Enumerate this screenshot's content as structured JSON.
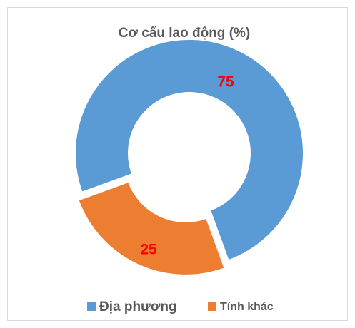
{
  "chart_data": {
    "type": "donut",
    "title": "Cơ cấu lao động (%)",
    "categories": [
      "Địa phương",
      "Tỉnh khác"
    ],
    "values": [
      75,
      25
    ],
    "colors": [
      "#5b9bd5",
      "#ed7d31"
    ],
    "label_color": "#ff0000",
    "legend": "bottom"
  }
}
